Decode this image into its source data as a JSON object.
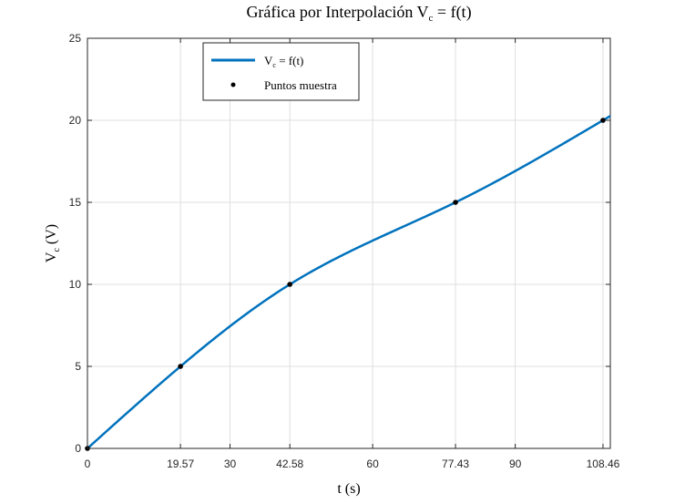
{
  "chart_data": {
    "type": "line",
    "title": "Gráfica por Interpolación V",
    "title_sub": "c",
    "title_tail": " = f(t)",
    "xlabel": "t (s)",
    "ylabel_main": "V",
    "ylabel_sub": "c",
    "ylabel_tail": " (V)",
    "xlim": [
      0,
      110
    ],
    "ylim": [
      0,
      25
    ],
    "xticks": [
      0,
      19.57,
      30,
      42.58,
      60,
      77.43,
      90,
      108.46
    ],
    "xtick_labels": [
      "0",
      "19.57",
      "30",
      "42.58",
      "60",
      "77.43",
      "90",
      "108.46"
    ],
    "yticks": [
      0,
      5,
      10,
      15,
      20,
      25
    ],
    "ytick_labels": [
      "0",
      "5",
      "10",
      "15",
      "20",
      "25"
    ],
    "grid": true,
    "series": [
      {
        "name": "V",
        "name_sub": "c",
        "name_tail": " = f(t)",
        "kind": "line",
        "color": "#0072BD",
        "x": [
          0,
          19.57,
          42.58,
          77.43,
          108.46
        ],
        "y": [
          0,
          5,
          10,
          15,
          20
        ]
      },
      {
        "name": "Puntos muestra",
        "kind": "points",
        "color": "#000000",
        "x": [
          0,
          19.57,
          42.58,
          77.43,
          108.46
        ],
        "y": [
          0,
          5,
          10,
          15,
          20
        ]
      }
    ],
    "curve_extends_to_x": 110,
    "legend_position": "top-left"
  }
}
